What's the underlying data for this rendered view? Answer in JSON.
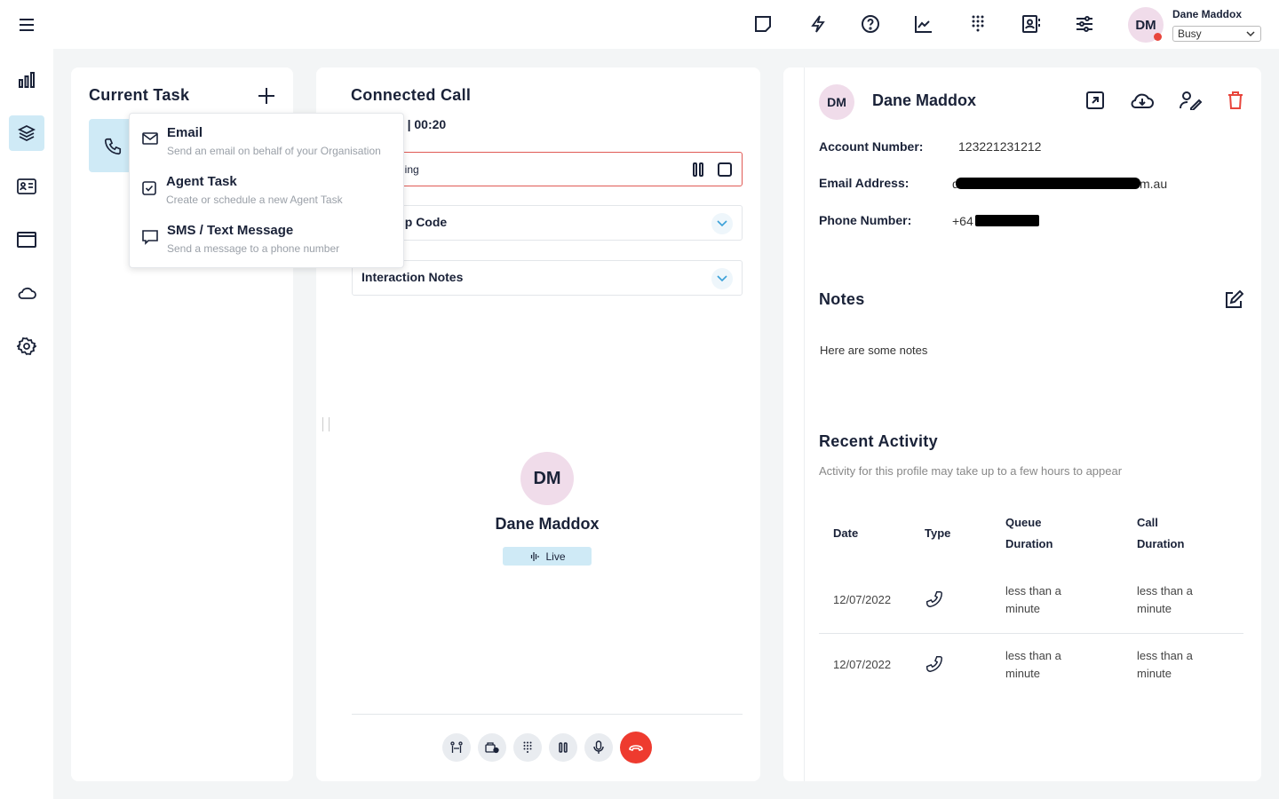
{
  "topbar": {
    "user_name": "Dane Maddox",
    "user_initials": "DM",
    "status": "Busy",
    "status_color": "#e8453c",
    "icons": [
      "sticky-note-icon",
      "lightning-icon",
      "help-icon",
      "analytics-icon",
      "dialpad-icon",
      "contacts-icon",
      "settings-sliders-icon"
    ]
  },
  "sidebar": {
    "items": [
      "menu-icon",
      "stats-icon",
      "layers-icon",
      "contact-card-icon",
      "window-icon",
      "cloud-icon",
      "gear-icon"
    ],
    "active": "layers-icon"
  },
  "current_task": {
    "title": "Current Task"
  },
  "new_task_menu": {
    "items": [
      {
        "label": "Email",
        "desc": "Send an email on behalf of your Organisation"
      },
      {
        "label": "Agent Task",
        "desc": "Create or schedule a new Agent Task"
      },
      {
        "label": "SMS / Text Message",
        "desc": "Send a message to a phone number"
      }
    ]
  },
  "call": {
    "title": "Connected Call",
    "queue_timer": "Q1 | 00:20",
    "recording_label": "Recording",
    "wrap_up_label": "Wrap Up Code",
    "notes_label": "Interaction Notes",
    "caller_initials": "DM",
    "caller_name": "Dane Maddox",
    "live_label": "Live"
  },
  "contact": {
    "initials": "DM",
    "name": "Dane Maddox",
    "fields": [
      {
        "label": "Account Number:",
        "value": "123221231212"
      },
      {
        "label": "Email Address:",
        "value": "d",
        "value_suffix": "m.au"
      },
      {
        "label": "Phone Number:",
        "value": "+64"
      }
    ],
    "notes_title": "Notes",
    "notes_text": "Here are some notes",
    "activity_title": "Recent Activity",
    "activity_subtitle": "Activity for this profile may take up to a few hours to appear",
    "table": {
      "headers": [
        "Date",
        "Type",
        "Queue Duration",
        "Call Duration"
      ],
      "rows": [
        {
          "date": "12/07/2022",
          "type": "phone-icon",
          "queue": "less than a minute",
          "call": "less than a minute"
        },
        {
          "date": "12/07/2022",
          "type": "phone-icon",
          "queue": "less than a minute",
          "call": "less than a minute"
        }
      ]
    }
  }
}
